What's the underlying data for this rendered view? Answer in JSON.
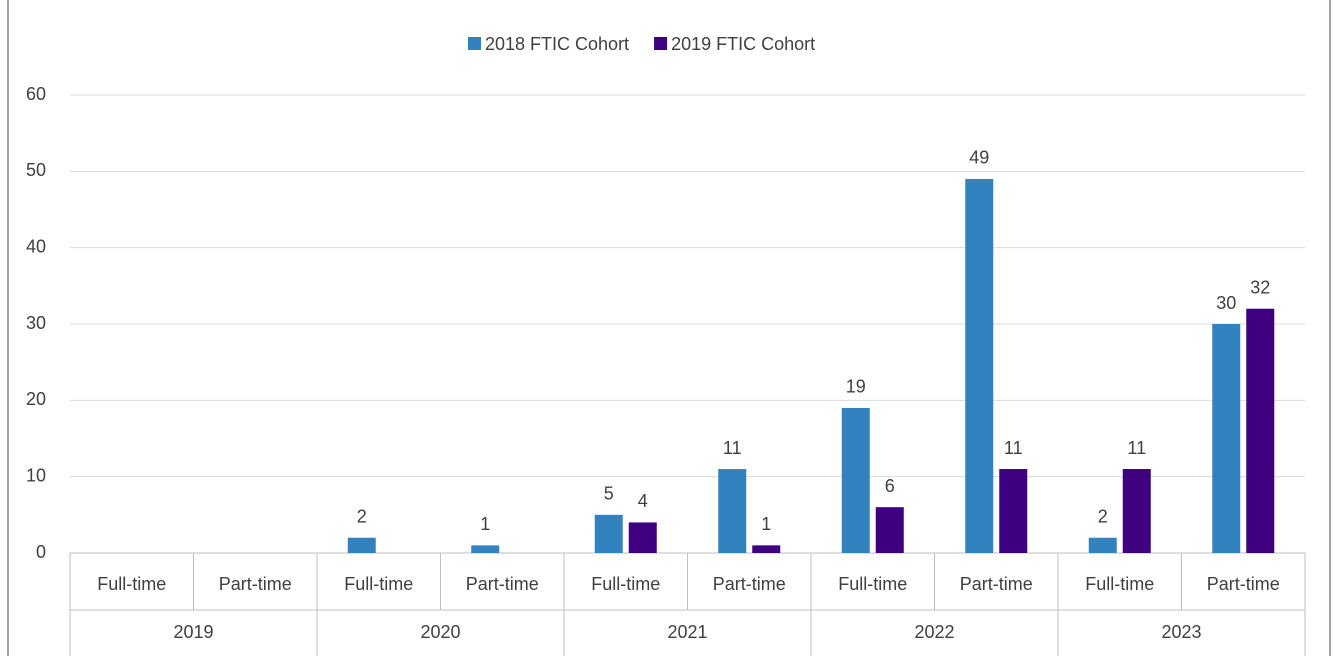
{
  "chart_data": {
    "type": "bar",
    "categories": [
      "Full-time",
      "Part-time",
      "Full-time",
      "Part-time",
      "Full-time",
      "Part-time",
      "Full-time",
      "Part-time",
      "Full-time",
      "Part-time"
    ],
    "groups": [
      "2019",
      "2020",
      "2021",
      "2022",
      "2023"
    ],
    "series": [
      {
        "name": "2018 FTIC Cohort",
        "color": "#3282c0",
        "values": [
          null,
          null,
          2,
          1,
          5,
          11,
          19,
          49,
          2,
          30
        ]
      },
      {
        "name": "2019 FTIC Cohort",
        "color": "#3f007f",
        "values": [
          null,
          null,
          null,
          null,
          4,
          1,
          6,
          11,
          11,
          32
        ]
      }
    ],
    "ylim": [
      0,
      60
    ],
    "yticks": [
      0,
      10,
      20,
      30,
      40,
      50,
      60
    ],
    "grid": true,
    "legend": "top"
  }
}
